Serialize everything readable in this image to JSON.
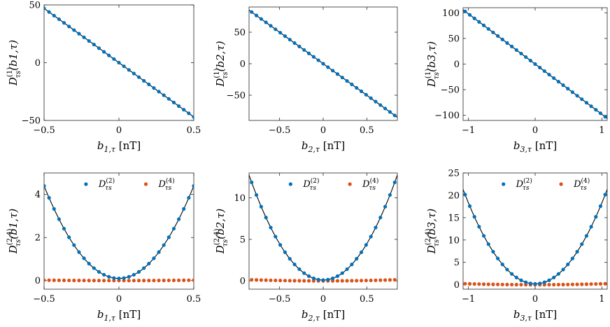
{
  "colors": {
    "series1": "#0072BD",
    "series2": "#D95319",
    "fit": "#000000",
    "axis": "#262626"
  },
  "chart_data": [
    {
      "type": "scatter",
      "id": "p1",
      "xlabel": "b_{1,τ} [nT]",
      "ylabel": "D^{(1)}_{τ_s}(b_{1,τ})",
      "xlim": [
        -0.5,
        0.5
      ],
      "ylim": [
        -50,
        50
      ],
      "xticks": [
        -0.5,
        0,
        0.5
      ],
      "xticklabels": [
        "−0.5",
        "0",
        "0.5"
      ],
      "yticks": [
        -50,
        0,
        50
      ],
      "yticklabels": [
        "−50",
        "0",
        "50"
      ],
      "series": [
        {
          "name": "D^{(1)}",
          "x_range": [
            -0.5,
            0.5
          ],
          "points": 31,
          "formula": "linear",
          "slope": -94,
          "color": "series1"
        }
      ],
      "fit": {
        "formula": "linear",
        "slope": -94
      }
    },
    {
      "type": "scatter",
      "id": "p2",
      "xlabel": "b_{2,τ} [nT]",
      "ylabel": "D^{(1)}_{τ_s}(b_{2,τ})",
      "xlim": [
        -0.85,
        0.85
      ],
      "ylim": [
        -90,
        90
      ],
      "xticks": [
        -0.5,
        0,
        0.5
      ],
      "xticklabels": [
        "−0.5",
        "0",
        "0.5"
      ],
      "yticks": [
        -50,
        0,
        50
      ],
      "yticklabels": [
        "−50",
        "0",
        "50"
      ],
      "series": [
        {
          "name": "D^{(1)}",
          "x_range": [
            -0.82,
            0.82
          ],
          "points": 31,
          "formula": "linear",
          "slope": -100,
          "color": "series1"
        }
      ],
      "fit": {
        "formula": "linear",
        "slope": -100
      }
    },
    {
      "type": "scatter",
      "id": "p3",
      "xlabel": "b_{3,τ} [nT]",
      "ylabel": "D^{(1)}_{τ_s}(b_{3,τ})",
      "xlim": [
        -1.08,
        1.08
      ],
      "ylim": [
        -110,
        110
      ],
      "xticks": [
        -1,
        0,
        1
      ],
      "xticklabels": [
        "−1",
        "0",
        "1"
      ],
      "yticks": [
        -100,
        -50,
        0,
        50,
        100
      ],
      "yticklabels": [
        "−100",
        "−50",
        "0",
        "50",
        "100"
      ],
      "series": [
        {
          "name": "D^{(1)}",
          "x_range": [
            -1.05,
            1.05
          ],
          "points": 31,
          "formula": "linear",
          "slope": -98,
          "color": "series1"
        }
      ],
      "fit": {
        "formula": "linear",
        "slope": -98
      }
    },
    {
      "type": "scatter",
      "id": "p4",
      "xlabel": "b_{1,τ} [nT]",
      "ylabel": "D^{(2,4)}_{τ_s}(b_{1,τ})",
      "xlim": [
        -0.5,
        0.5
      ],
      "ylim": [
        -0.4,
        5
      ],
      "xticks": [
        -0.5,
        0,
        0.5
      ],
      "xticklabels": [
        "−0.5",
        "0",
        "0.5"
      ],
      "yticks": [
        0,
        2,
        4
      ],
      "yticklabels": [
        "0",
        "2",
        "4"
      ],
      "legend": [
        "D^{(2)}_{τ_s}",
        "D^{(4)}_{τ_s}"
      ],
      "series": [
        {
          "name": "D^{(2)}",
          "x_range": [
            -0.5,
            0.5
          ],
          "points": 31,
          "formula": "quadratic",
          "a": 17.2,
          "c": 0.1,
          "color": "series1"
        },
        {
          "name": "D^{(4)}",
          "x_range": [
            -0.5,
            0.5
          ],
          "points": 31,
          "formula": "quadratic",
          "a": 0.08,
          "c": 0.0,
          "color": "series2"
        }
      ],
      "fit": {
        "formula": "quadratic",
        "a": 17.2,
        "c": 0.1
      }
    },
    {
      "type": "scatter",
      "id": "p5",
      "xlabel": "b_{2,τ} [nT]",
      "ylabel": "D^{(2,4)}_{τ_s}(b_{2,τ})",
      "xlim": [
        -0.85,
        0.85
      ],
      "ylim": [
        -1,
        13
      ],
      "xticks": [
        -0.5,
        0,
        0.5
      ],
      "xticklabels": [
        "−0.5",
        "0",
        "0.5"
      ],
      "yticks": [
        0,
        5,
        10
      ],
      "yticklabels": [
        "0",
        "5",
        "10"
      ],
      "legend": [
        "D^{(2)}_{τ_s}",
        "D^{(4)}_{τ_s}"
      ],
      "series": [
        {
          "name": "D^{(2)}",
          "x_range": [
            -0.82,
            0.82
          ],
          "points": 31,
          "formula": "quadratic",
          "a": 17.5,
          "c": 0.1,
          "color": "series1"
        },
        {
          "name": "D^{(4)}",
          "x_range": [
            -0.82,
            0.82
          ],
          "points": 31,
          "formula": "quadratic",
          "a": 0.2,
          "c": 0.0,
          "color": "series2"
        }
      ],
      "fit": {
        "formula": "quadratic",
        "a": 17.5,
        "c": 0.1
      }
    },
    {
      "type": "scatter",
      "id": "p6",
      "xlabel": "b_{3,τ} [nT]",
      "ylabel": "D^{(2,4)}_{τ_s}(b_{3,τ})",
      "xlim": [
        -1.08,
        1.08
      ],
      "ylim": [
        -1,
        25
      ],
      "xticks": [
        -1,
        0,
        1
      ],
      "xticklabels": [
        "−1",
        "0",
        "1"
      ],
      "yticks": [
        0,
        5,
        10,
        15,
        20,
        25
      ],
      "yticklabels": [
        "0",
        "5",
        "10",
        "15",
        "20",
        "25"
      ],
      "legend": [
        "D^{(2)}_{τ_s}",
        "D^{(4)}_{τ_s}"
      ],
      "series": [
        {
          "name": "D^{(2)}",
          "x_range": [
            -1.05,
            1.05
          ],
          "points": 31,
          "formula": "quadratic",
          "a": 18.1,
          "c": 0.2,
          "color": "series1"
        },
        {
          "name": "D^{(4)}",
          "x_range": [
            -1.05,
            1.05
          ],
          "points": 31,
          "formula": "quadratic",
          "a": 0.2,
          "c": 0.0,
          "color": "series2"
        }
      ],
      "fit": {
        "formula": "quadratic",
        "a": 18.1,
        "c": 0.2
      }
    }
  ]
}
